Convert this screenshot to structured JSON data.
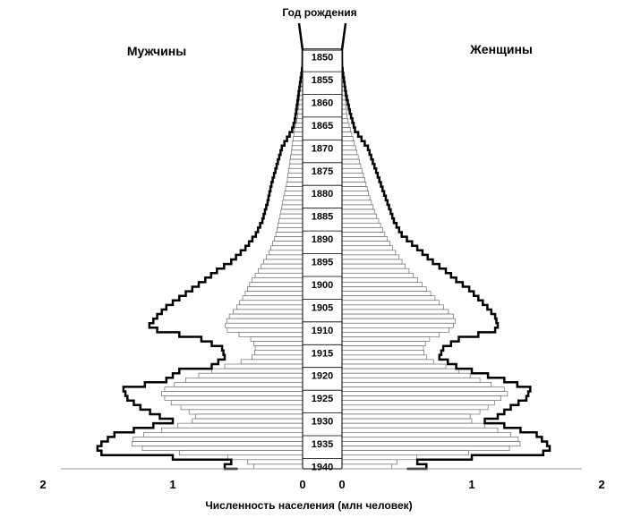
{
  "chart_data": {
    "type": "bar",
    "orientation": "horizontal-population-pyramid",
    "title": "Год рождения",
    "left_label": "Мужчины",
    "right_label": "Женщины",
    "xlabel": "Численность населения (млн человек)",
    "x_ticks_left": [
      "0",
      "1",
      "2"
    ],
    "x_ticks_right": [
      "0",
      "1",
      "2"
    ],
    "xlim": [
      0,
      2
    ],
    "year_labels": [
      "1850",
      "1855",
      "1860",
      "1865",
      "1870",
      "1875",
      "1880",
      "1885",
      "1890",
      "1895",
      "1900",
      "1905",
      "1910",
      "1915",
      "1920",
      "1925",
      "1930",
      "1935",
      "1940"
    ],
    "year_range": [
      1849,
      1941
    ],
    "series": [
      {
        "name": "Мужчины (столбцы)",
        "side": "left",
        "style": "bars",
        "points": [
          [
            1849,
            0.0
          ],
          [
            1858,
            0.02
          ],
          [
            1864,
            0.04
          ],
          [
            1866,
            0.06
          ],
          [
            1870,
            0.08
          ],
          [
            1874,
            0.1
          ],
          [
            1878,
            0.12
          ],
          [
            1882,
            0.15
          ],
          [
            1885,
            0.17
          ],
          [
            1889,
            0.2
          ],
          [
            1893,
            0.25
          ],
          [
            1897,
            0.33
          ],
          [
            1900,
            0.4
          ],
          [
            1903,
            0.45
          ],
          [
            1906,
            0.52
          ],
          [
            1908,
            0.58
          ],
          [
            1910,
            0.6
          ],
          [
            1911,
            0.56
          ],
          [
            1912,
            0.42
          ],
          [
            1913,
            0.38
          ],
          [
            1915,
            0.36
          ],
          [
            1917,
            0.4
          ],
          [
            1918,
            0.55
          ],
          [
            1920,
            0.75
          ],
          [
            1922,
            0.95
          ],
          [
            1924,
            1.1
          ],
          [
            1926,
            1.05
          ],
          [
            1928,
            0.9
          ],
          [
            1930,
            0.8
          ],
          [
            1931,
            0.9
          ],
          [
            1933,
            1.15
          ],
          [
            1934,
            1.3
          ],
          [
            1936,
            1.32
          ],
          [
            1937,
            1.15
          ],
          [
            1938,
            0.75
          ],
          [
            1939,
            0.4
          ],
          [
            1940,
            0.45
          ],
          [
            1941,
            0.3
          ]
        ]
      },
      {
        "name": "Мужчины (контур)",
        "side": "left",
        "style": "outline",
        "points": [
          [
            1849,
            0.0
          ],
          [
            1852,
            0.0
          ],
          [
            1858,
            0.03
          ],
          [
            1862,
            0.05
          ],
          [
            1864,
            0.06
          ],
          [
            1866,
            0.08
          ],
          [
            1868,
            0.12
          ],
          [
            1870,
            0.16
          ],
          [
            1874,
            0.2
          ],
          [
            1878,
            0.24
          ],
          [
            1882,
            0.27
          ],
          [
            1886,
            0.31
          ],
          [
            1889,
            0.36
          ],
          [
            1892,
            0.44
          ],
          [
            1895,
            0.55
          ],
          [
            1897,
            0.66
          ],
          [
            1899,
            0.75
          ],
          [
            1901,
            0.85
          ],
          [
            1903,
            0.95
          ],
          [
            1905,
            1.05
          ],
          [
            1907,
            1.12
          ],
          [
            1909,
            1.18
          ],
          [
            1910,
            1.12
          ],
          [
            1911,
            0.95
          ],
          [
            1912,
            0.78
          ],
          [
            1914,
            0.62
          ],
          [
            1916,
            0.6
          ],
          [
            1918,
            0.7
          ],
          [
            1919,
            0.95
          ],
          [
            1921,
            1.05
          ],
          [
            1923,
            1.38
          ],
          [
            1925,
            1.35
          ],
          [
            1927,
            1.25
          ],
          [
            1929,
            1.1
          ],
          [
            1930,
            1.0
          ],
          [
            1931,
            1.15
          ],
          [
            1933,
            1.45
          ],
          [
            1935,
            1.55
          ],
          [
            1936,
            1.58
          ],
          [
            1937,
            1.55
          ],
          [
            1938,
            1.0
          ],
          [
            1939,
            0.55
          ],
          [
            1940,
            0.6
          ],
          [
            1941,
            0.5
          ]
        ]
      },
      {
        "name": "Женщины (столбцы)",
        "side": "right",
        "style": "bars",
        "points": [
          [
            1849,
            0.0
          ],
          [
            1858,
            0.02
          ],
          [
            1864,
            0.04
          ],
          [
            1866,
            0.06
          ],
          [
            1870,
            0.1
          ],
          [
            1874,
            0.14
          ],
          [
            1878,
            0.18
          ],
          [
            1882,
            0.22
          ],
          [
            1885,
            0.26
          ],
          [
            1889,
            0.32
          ],
          [
            1893,
            0.4
          ],
          [
            1897,
            0.5
          ],
          [
            1900,
            0.6
          ],
          [
            1903,
            0.7
          ],
          [
            1906,
            0.8
          ],
          [
            1908,
            0.88
          ],
          [
            1910,
            0.85
          ],
          [
            1911,
            0.8
          ],
          [
            1912,
            0.7
          ],
          [
            1913,
            0.65
          ],
          [
            1915,
            0.62
          ],
          [
            1917,
            0.66
          ],
          [
            1918,
            0.75
          ],
          [
            1920,
            0.95
          ],
          [
            1922,
            1.1
          ],
          [
            1924,
            1.3
          ],
          [
            1926,
            1.2
          ],
          [
            1928,
            1.1
          ],
          [
            1930,
            0.95
          ],
          [
            1931,
            1.05
          ],
          [
            1933,
            1.25
          ],
          [
            1934,
            1.35
          ],
          [
            1936,
            1.38
          ],
          [
            1937,
            1.2
          ],
          [
            1938,
            0.75
          ],
          [
            1939,
            0.4
          ],
          [
            1940,
            0.45
          ],
          [
            1941,
            0.32
          ]
        ]
      },
      {
        "name": "Женщины (контур)",
        "side": "right",
        "style": "outline",
        "points": [
          [
            1849,
            0.0
          ],
          [
            1852,
            0.0
          ],
          [
            1858,
            0.03
          ],
          [
            1862,
            0.06
          ],
          [
            1864,
            0.08
          ],
          [
            1866,
            0.1
          ],
          [
            1868,
            0.15
          ],
          [
            1870,
            0.2
          ],
          [
            1874,
            0.25
          ],
          [
            1878,
            0.3
          ],
          [
            1882,
            0.35
          ],
          [
            1886,
            0.4
          ],
          [
            1889,
            0.46
          ],
          [
            1892,
            0.58
          ],
          [
            1895,
            0.7
          ],
          [
            1897,
            0.8
          ],
          [
            1899,
            0.88
          ],
          [
            1901,
            0.98
          ],
          [
            1903,
            1.05
          ],
          [
            1905,
            1.12
          ],
          [
            1907,
            1.18
          ],
          [
            1909,
            1.2
          ],
          [
            1910,
            1.18
          ],
          [
            1911,
            1.05
          ],
          [
            1912,
            0.9
          ],
          [
            1914,
            0.78
          ],
          [
            1916,
            0.75
          ],
          [
            1918,
            0.88
          ],
          [
            1919,
            1.0
          ],
          [
            1921,
            1.25
          ],
          [
            1923,
            1.45
          ],
          [
            1925,
            1.42
          ],
          [
            1927,
            1.3
          ],
          [
            1929,
            1.2
          ],
          [
            1930,
            1.1
          ],
          [
            1931,
            1.25
          ],
          [
            1933,
            1.5
          ],
          [
            1935,
            1.58
          ],
          [
            1936,
            1.6
          ],
          [
            1937,
            1.55
          ],
          [
            1938,
            1.0
          ],
          [
            1939,
            0.58
          ],
          [
            1940,
            0.65
          ],
          [
            1941,
            0.5
          ]
        ]
      }
    ]
  }
}
